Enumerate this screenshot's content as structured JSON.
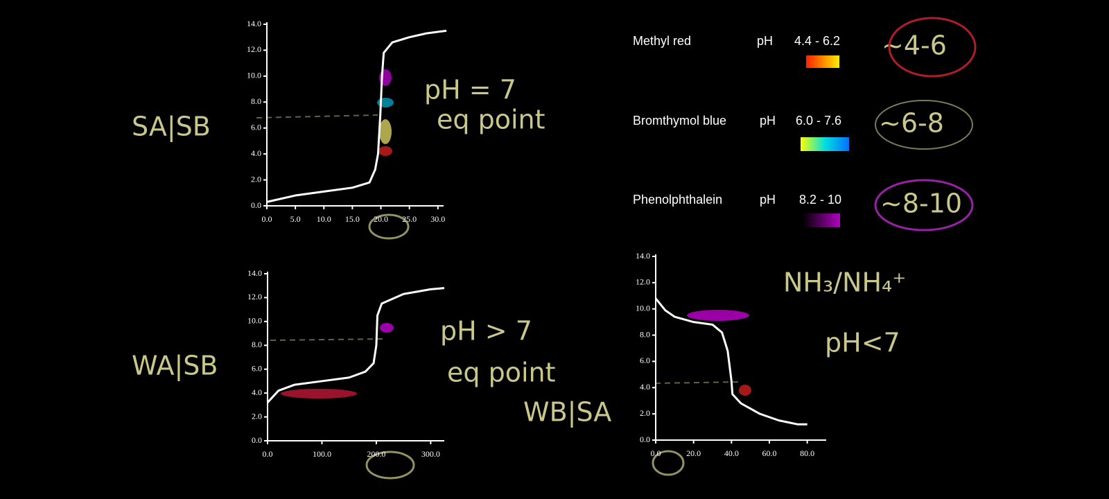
{
  "chart_data": [
    {
      "type": "line",
      "title": "SA|SB",
      "annotations": [
        "pH = 7",
        "eq point"
      ],
      "x": [
        0,
        5,
        10,
        15,
        18,
        19,
        19.5,
        19.9,
        20.2,
        20.5,
        22,
        25,
        28,
        31.5
      ],
      "values": [
        0.3,
        0.8,
        1.1,
        1.4,
        1.8,
        2.8,
        4.0,
        7.0,
        10.0,
        11.8,
        12.6,
        13.0,
        13.3,
        13.5
      ],
      "color": "#ffffff",
      "xlim": [
        0,
        31
      ],
      "ylim": [
        0,
        14
      ],
      "xticks": [
        {
          "value": 0,
          "label": "0.0"
        },
        {
          "value": 5,
          "label": "5.0"
        },
        {
          "value": 10,
          "label": "10.0"
        },
        {
          "value": 15,
          "label": "15.0"
        },
        {
          "value": 20,
          "label": "20.0"
        },
        {
          "value": 25,
          "label": "25.0"
        },
        {
          "value": 30,
          "label": "30.0"
        }
      ],
      "yticks": [
        {
          "value": 0,
          "label": "0.0"
        },
        {
          "value": 2,
          "label": "2.0"
        },
        {
          "value": 4,
          "label": "4.0"
        },
        {
          "value": 6,
          "label": "6.0"
        },
        {
          "value": 8,
          "label": "8.0"
        },
        {
          "value": 10,
          "label": "10.0"
        },
        {
          "value": 12,
          "label": "12.0"
        },
        {
          "value": 14,
          "label": "14.0"
        }
      ]
    },
    {
      "type": "line",
      "title": "WA|SB",
      "annotations": [
        "pH > 7",
        "eq point"
      ],
      "x": [
        0,
        20,
        50,
        100,
        150,
        180,
        195,
        200,
        202,
        210,
        250,
        300,
        325
      ],
      "values": [
        3.2,
        4.2,
        4.7,
        5.0,
        5.3,
        5.8,
        6.5,
        8.0,
        10.5,
        11.5,
        12.3,
        12.7,
        12.8
      ],
      "color": "#ffffff",
      "xlim": [
        0,
        325
      ],
      "ylim": [
        0,
        14
      ],
      "xticks": [
        {
          "value": 0,
          "label": "0.0"
        },
        {
          "value": 100,
          "label": "100.0"
        },
        {
          "value": 200,
          "label": "200.0"
        },
        {
          "value": 300,
          "label": "300.0"
        }
      ],
      "yticks": [
        {
          "value": 0,
          "label": "0.0"
        },
        {
          "value": 2,
          "label": "2.0"
        },
        {
          "value": 4,
          "label": "4.0"
        },
        {
          "value": 6,
          "label": "6.0"
        },
        {
          "value": 8,
          "label": "8.0"
        },
        {
          "value": 10,
          "label": "10.0"
        },
        {
          "value": 12,
          "label": "12.0"
        },
        {
          "value": 14,
          "label": "14.0"
        }
      ]
    },
    {
      "type": "line",
      "title": "WB|SA",
      "annotations": [
        "NH₃/NH₄⁺",
        "pH<7"
      ],
      "x": [
        0,
        5,
        10,
        20,
        30,
        35,
        38,
        40,
        40.5,
        45,
        55,
        65,
        75,
        80
      ],
      "values": [
        10.8,
        9.9,
        9.4,
        9.0,
        8.8,
        8.2,
        6.8,
        4.5,
        3.5,
        2.8,
        2.0,
        1.5,
        1.2,
        1.2
      ],
      "color": "#ffffff",
      "xlim": [
        0,
        90
      ],
      "ylim": [
        0,
        14
      ],
      "xticks": [
        {
          "value": 0,
          "label": "0.0"
        },
        {
          "value": 20,
          "label": "20.0"
        },
        {
          "value": 40,
          "label": "40.0"
        },
        {
          "value": 60,
          "label": "60.0"
        },
        {
          "value": 80,
          "label": "80.0"
        }
      ],
      "yticks": [
        {
          "value": 0,
          "label": "0.0"
        },
        {
          "value": 2,
          "label": "2.0"
        },
        {
          "value": 4,
          "label": "4.0"
        },
        {
          "value": 6,
          "label": "6.0"
        },
        {
          "value": 8,
          "label": "8.0"
        },
        {
          "value": 10,
          "label": "10.0"
        },
        {
          "value": 12,
          "label": "12.0"
        },
        {
          "value": 14,
          "label": "14.0"
        }
      ]
    }
  ],
  "indicators": [
    {
      "name": "Methyl red",
      "unit": "pH",
      "range": "4.4 - 6.2",
      "note": "~4-6"
    },
    {
      "name": "Bromthymol blue",
      "unit": "pH",
      "range": "6.0 - 7.6",
      "note": "~6-8"
    },
    {
      "name": "Phenolphthalein",
      "unit": "pH",
      "range": "8.2 - 10",
      "note": "~8-10"
    }
  ]
}
